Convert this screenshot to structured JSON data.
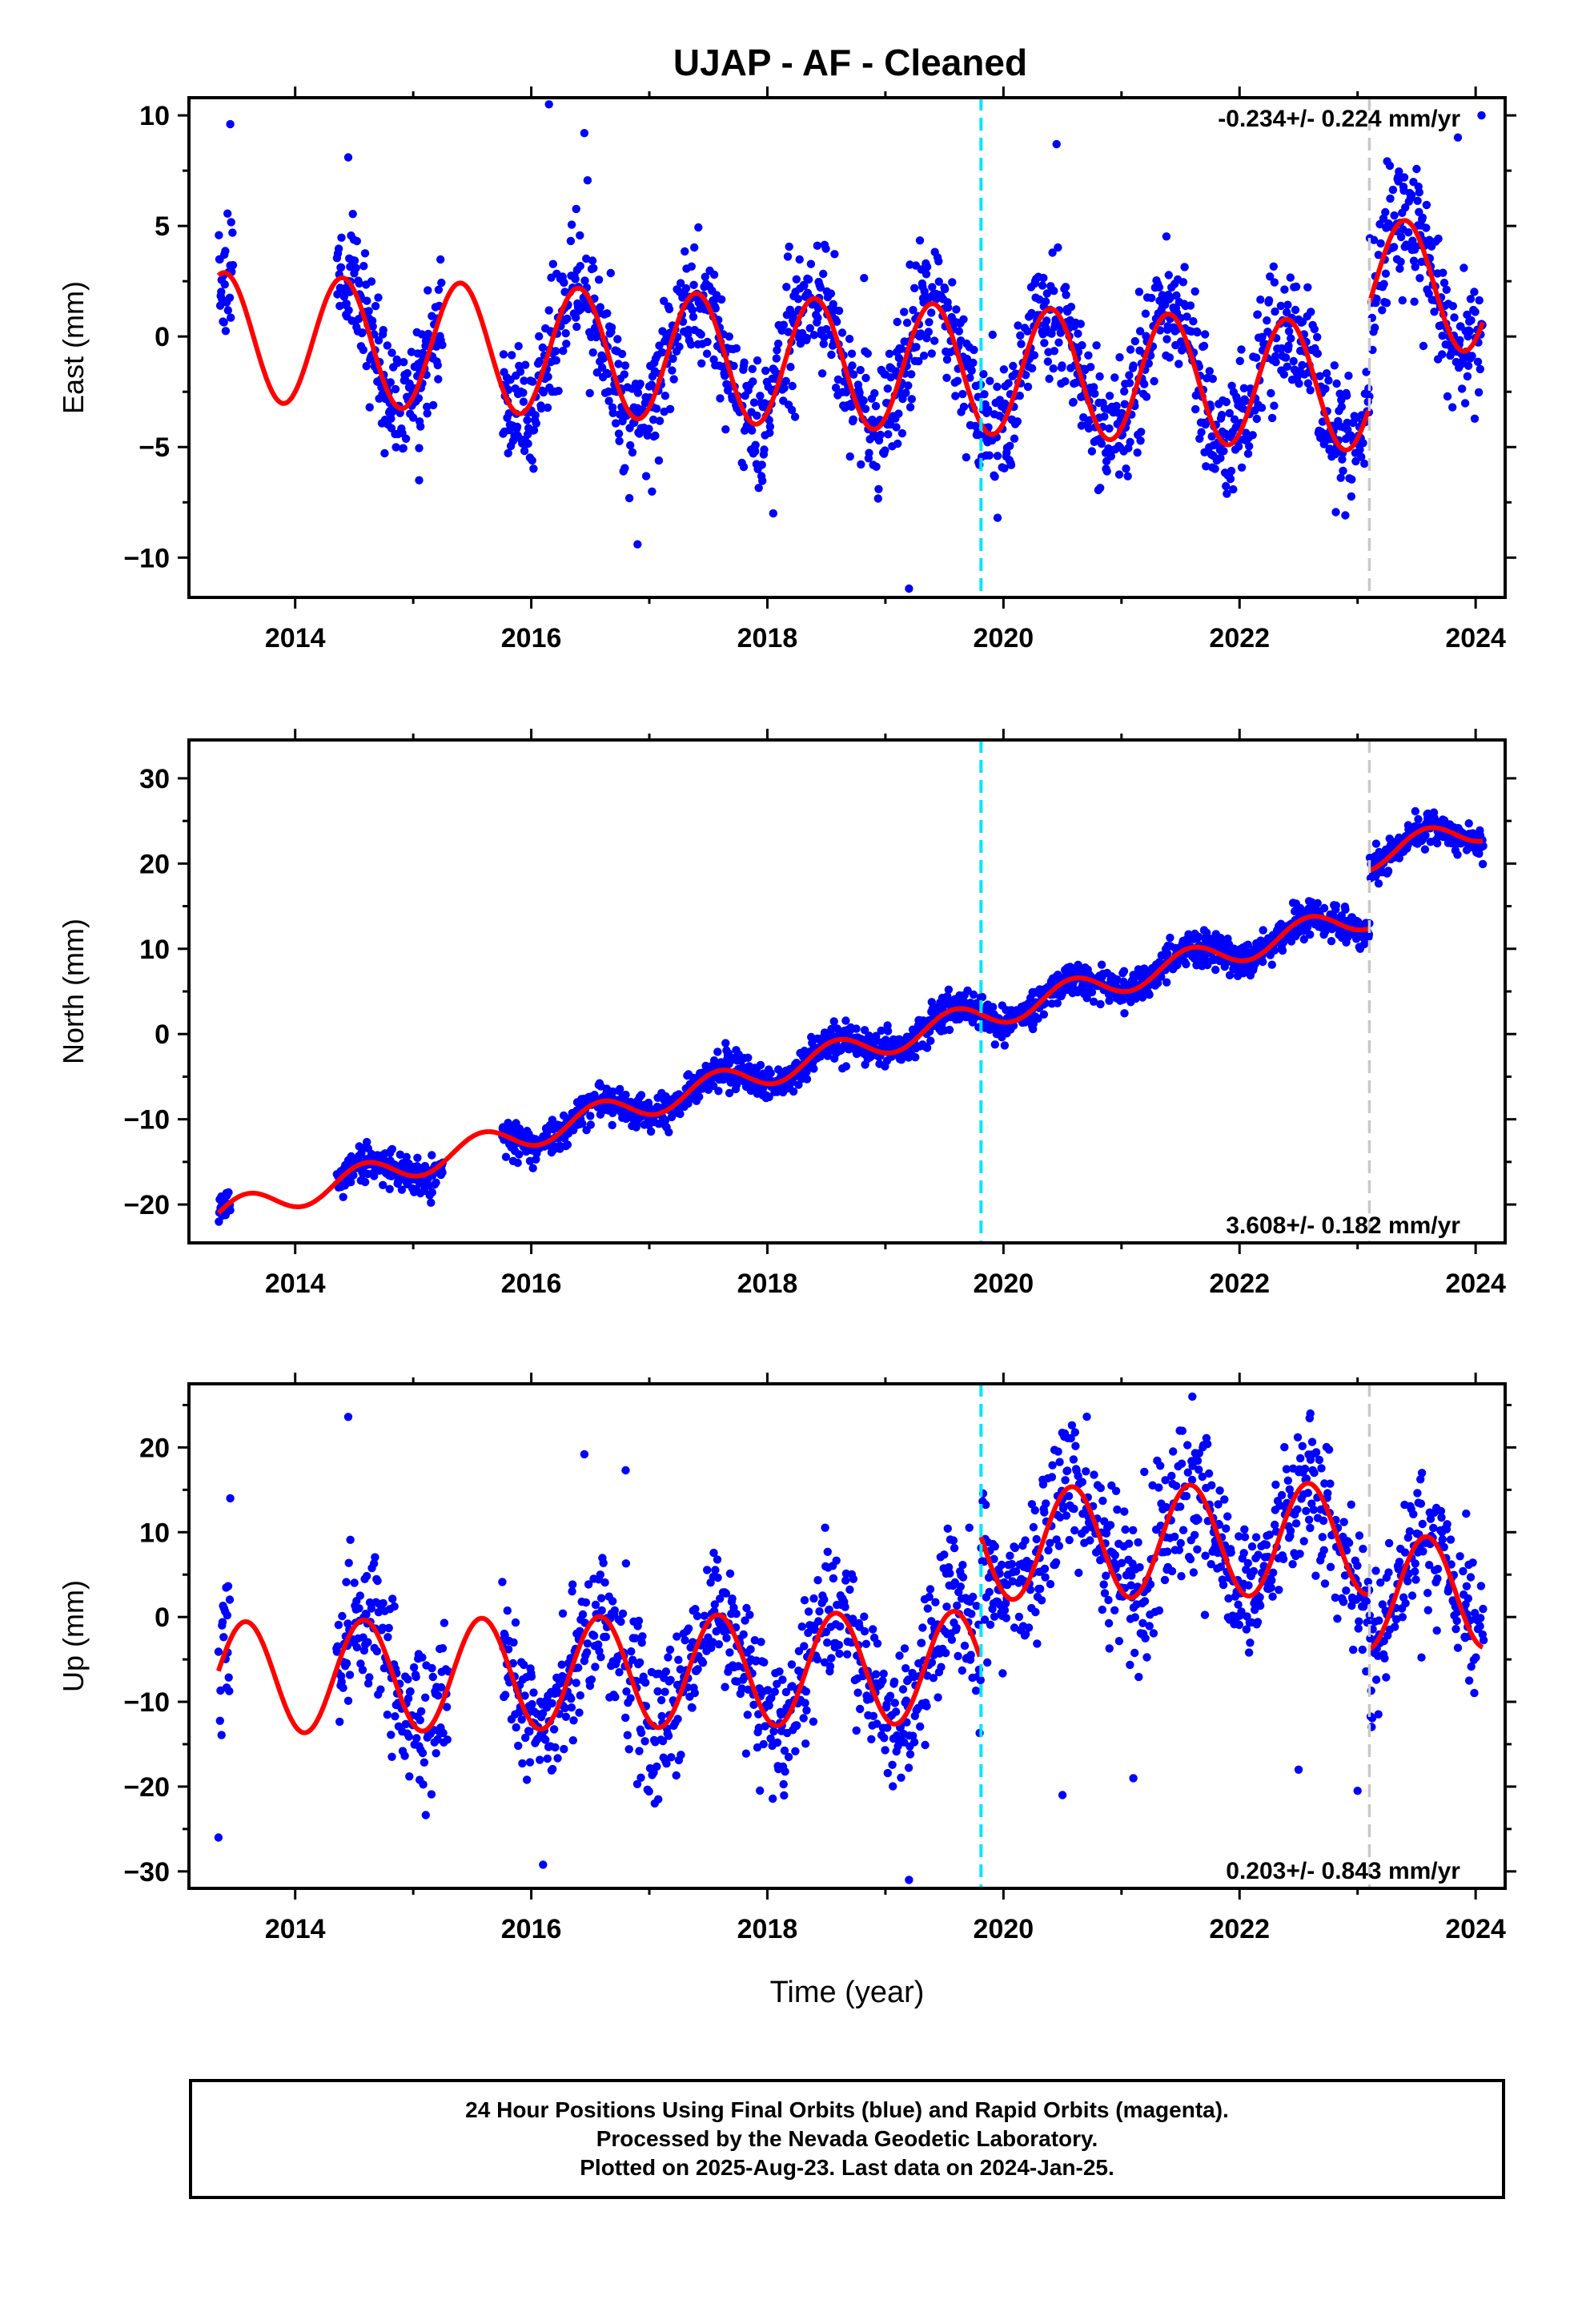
{
  "title": "UJAP  - AF - Cleaned",
  "xlabel": "Time (year)",
  "footer": {
    "line1": "24 Hour Positions Using Final Orbits (blue) and Rapid Orbits (magenta).",
    "line2": "Processed by the Nevada Geodetic Laboratory.",
    "line3": "Plotted on 2025-Aug-23. Last data on 2024-Jan-25."
  },
  "colors": {
    "final_points": "#0000ff",
    "model": "#ff0000",
    "equipment_change": "#00e5ff",
    "event_marker": "#c8c8c8"
  },
  "chart_data": [
    {
      "type": "scatter",
      "component": "east",
      "ylabel": "East (mm)",
      "xlim": [
        2013.1,
        2024.25
      ],
      "ylim": [
        -11.8,
        10.8
      ],
      "xticks": [
        2014,
        2016,
        2018,
        2020,
        2022,
        2024
      ],
      "xtick_labels": [
        "2014",
        "2016",
        "2018",
        "2020",
        "2022",
        "2024"
      ],
      "yticks": [
        -10,
        -5,
        0,
        5,
        10
      ],
      "ytick_labels": [
        "−10",
        "−5",
        "0",
        "5",
        "10"
      ],
      "rate_label": "-0.234+/- 0.224 mm/yr",
      "rate_position": "top-right",
      "vlines": [
        {
          "x": 2019.81,
          "style": "cyan-dashed"
        },
        {
          "x": 2023.1,
          "style": "gray-dashed"
        }
      ],
      "model": {
        "start": 2013.35,
        "end": 2024.07,
        "offset": 0.0,
        "rate_mm_per_yr": -0.234,
        "annual_amp": 2.9,
        "annual_peak_phase": 0.4,
        "steps": [
          {
            "x": 2023.1,
            "dy": 4.7
          }
        ],
        "gap_curve_until": 2014.2,
        "notes": ""
      },
      "scatter": {
        "sigma": 1.4,
        "density_per_year": 260,
        "seed": 11,
        "gaps": [
          [
            2013.48,
            2014.35
          ],
          [
            2015.25,
            2015.75
          ]
        ],
        "outliers": [
          [
            2013.45,
            9.6
          ],
          [
            2014.45,
            8.1
          ],
          [
            2016.15,
            10.5
          ],
          [
            2016.45,
            9.2
          ],
          [
            2016.9,
            -9.4
          ],
          [
            2018.05,
            -8.0
          ],
          [
            2019.2,
            -11.4
          ],
          [
            2019.95,
            -8.2
          ],
          [
            2020.45,
            8.7
          ],
          [
            2023.85,
            9.0
          ],
          [
            2024.05,
            10.0
          ],
          [
            2015.05,
            -6.5
          ],
          [
            2017.8,
            -5.9
          ]
        ]
      }
    },
    {
      "type": "scatter",
      "component": "north",
      "ylabel": "North (mm)",
      "xlim": [
        2013.1,
        2024.25
      ],
      "ylim": [
        -24.5,
        34.5
      ],
      "xticks": [
        2014,
        2016,
        2018,
        2020,
        2022,
        2024
      ],
      "xtick_labels": [
        "2014",
        "2016",
        "2018",
        "2020",
        "2022",
        "2024"
      ],
      "yticks": [
        -20,
        -10,
        0,
        10,
        20,
        30
      ],
      "ytick_labels": [
        "−20",
        "−10",
        "0",
        "10",
        "20",
        "30"
      ],
      "rate_label": "3.608+/- 0.182 mm/yr",
      "rate_position": "bottom-right",
      "vlines": [
        {
          "x": 2019.81,
          "style": "cyan-dashed"
        },
        {
          "x": 2023.1,
          "style": "gray-dashed"
        }
      ],
      "model": {
        "start": 2013.35,
        "end": 2024.07,
        "offset": -21.2,
        "rate_mm_per_yr": 3.608,
        "annual_amp": 1.6,
        "annual_peak_phase": 0.58,
        "steps": [
          {
            "x": 2023.1,
            "dy": 6.8
          }
        ],
        "gap_curve_until": 2014.3,
        "notes": ""
      },
      "scatter": {
        "sigma": 1.0,
        "density_per_year": 280,
        "seed": 23,
        "gaps": [
          [
            2013.45,
            2014.35
          ],
          [
            2015.25,
            2015.75
          ]
        ],
        "outliers": []
      }
    },
    {
      "type": "scatter",
      "component": "up",
      "ylabel": "Up (mm)",
      "xlim": [
        2013.1,
        2024.25
      ],
      "ylim": [
        -32,
        27.5
      ],
      "xticks": [
        2014,
        2016,
        2018,
        2020,
        2022,
        2024
      ],
      "xtick_labels": [
        "2014",
        "2016",
        "2018",
        "2020",
        "2022",
        "2024"
      ],
      "yticks": [
        -30,
        -20,
        -10,
        0,
        10,
        20
      ],
      "ytick_labels": [
        "−30",
        "−20",
        "−10",
        "0",
        "10",
        "20"
      ],
      "rate_label": "0.203+/- 0.843 mm/yr",
      "rate_position": "bottom-right",
      "vlines": [
        {
          "x": 2019.81,
          "style": "cyan-dashed"
        },
        {
          "x": 2023.1,
          "style": "gray-dashed"
        }
      ],
      "model": {
        "start": 2013.35,
        "end": 2024.07,
        "offset": -7.2,
        "rate_mm_per_yr": 0.203,
        "annual_amp": 6.6,
        "annual_peak_phase": 0.58,
        "steps": [
          {
            "x": 2019.81,
            "dy": 14.5
          },
          {
            "x": 2023.1,
            "dy": -6.5
          }
        ],
        "gap_curve_until": 2014.3,
        "notes": ""
      },
      "scatter": {
        "sigma": 4.2,
        "density_per_year": 230,
        "seed": 37,
        "gaps": [
          [
            2013.45,
            2014.35
          ],
          [
            2015.3,
            2015.75
          ]
        ],
        "outliers": [
          [
            2013.45,
            14.0
          ],
          [
            2014.45,
            23.6
          ],
          [
            2016.45,
            19.2
          ],
          [
            2016.8,
            17.3
          ],
          [
            2013.35,
            -26.0
          ],
          [
            2016.1,
            -29.2
          ],
          [
            2019.2,
            -31.0
          ],
          [
            2020.5,
            -21.0
          ],
          [
            2021.1,
            -19.0
          ],
          [
            2022.5,
            -18.0
          ],
          [
            2023.0,
            -20.5
          ],
          [
            2021.6,
            26.0
          ],
          [
            2022.6,
            24.0
          ]
        ]
      }
    }
  ]
}
